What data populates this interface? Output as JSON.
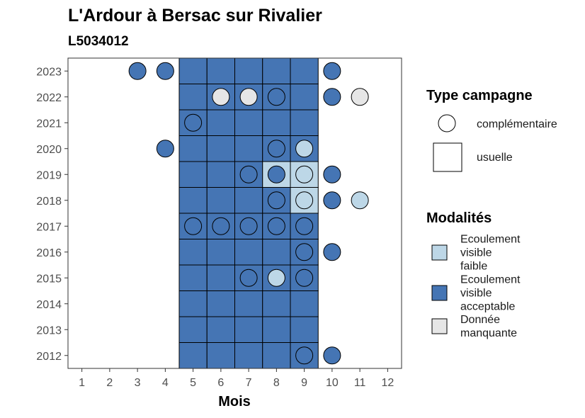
{
  "chart_data": {
    "type": "heatmap",
    "title": "L'Ardour à Bersac sur Rivalier",
    "subtitle": "L5034012",
    "xlabel": "Mois",
    "ylabel": "",
    "x_ticks": [
      1,
      2,
      3,
      4,
      5,
      6,
      7,
      8,
      9,
      10,
      11,
      12
    ],
    "y_ticks": [
      2012,
      2013,
      2014,
      2015,
      2016,
      2017,
      2018,
      2019,
      2020,
      2021,
      2022,
      2023
    ],
    "xlim": [
      0.5,
      12.5
    ],
    "ylim": [
      2011.5,
      2023.5
    ],
    "grid": false,
    "legend_position": "right",
    "colors": {
      "Ecoulement visible faible": "#BDD7E7",
      "Ecoulement visible acceptable": "#4575B4",
      "Donnée manquante": "#E6E6E6"
    },
    "legend": {
      "type_title": "Type campagne",
      "type_items": [
        "complémentaire",
        "usuelle"
      ],
      "modalite_title": "Modalités",
      "modalite_items": [
        {
          "label_lines": [
            "Ecoulement",
            "visible",
            "faible"
          ],
          "modalite": "Ecoulement visible faible"
        },
        {
          "label_lines": [
            "Ecoulement",
            "visible",
            "acceptable"
          ],
          "modalite": "Ecoulement visible acceptable"
        },
        {
          "label_lines": [
            "Donnée",
            "manquante"
          ],
          "modalite": "Donnée manquante"
        }
      ]
    },
    "usuelle": [
      {
        "year": 2023,
        "months": [
          5,
          6,
          7,
          8,
          9
        ],
        "modalites": [
          "A",
          "A",
          "A",
          "A",
          "A"
        ]
      },
      {
        "year": 2022,
        "months": [
          5,
          6,
          7,
          8,
          9
        ],
        "modalites": [
          "A",
          "A",
          "A",
          "A",
          "A"
        ]
      },
      {
        "year": 2021,
        "months": [
          5,
          6,
          7,
          8,
          9
        ],
        "modalites": [
          "A",
          "A",
          "A",
          "A",
          "A"
        ]
      },
      {
        "year": 2020,
        "months": [
          5,
          6,
          7,
          8,
          9
        ],
        "modalites": [
          "A",
          "A",
          "A",
          "A",
          "A"
        ]
      },
      {
        "year": 2019,
        "months": [
          5,
          6,
          7,
          8,
          9
        ],
        "modalites": [
          "A",
          "A",
          "A",
          "F",
          "F"
        ]
      },
      {
        "year": 2018,
        "months": [
          5,
          6,
          7,
          8,
          9
        ],
        "modalites": [
          "A",
          "A",
          "A",
          "A",
          "F"
        ]
      },
      {
        "year": 2017,
        "months": [
          5,
          6,
          7,
          8,
          9
        ],
        "modalites": [
          "A",
          "A",
          "A",
          "A",
          "A"
        ]
      },
      {
        "year": 2016,
        "months": [
          5,
          6,
          7,
          8,
          9
        ],
        "modalites": [
          "A",
          "A",
          "A",
          "A",
          "A"
        ]
      },
      {
        "year": 2015,
        "months": [
          5,
          6,
          7,
          8,
          9
        ],
        "modalites": [
          "A",
          "A",
          "A",
          "A",
          "A"
        ]
      },
      {
        "year": 2014,
        "months": [
          5,
          6,
          7,
          8,
          9
        ],
        "modalites": [
          "A",
          "A",
          "A",
          "A",
          "A"
        ]
      },
      {
        "year": 2013,
        "months": [
          5,
          6,
          7,
          8,
          9
        ],
        "modalites": [
          "A",
          "A",
          "A",
          "A",
          "A"
        ]
      },
      {
        "year": 2012,
        "months": [
          5,
          6,
          7,
          8,
          9
        ],
        "modalites": [
          "A",
          "A",
          "A",
          "A",
          "A"
        ]
      }
    ],
    "complementaire": [
      {
        "year": 2023,
        "month": 3,
        "m": "A"
      },
      {
        "year": 2023,
        "month": 4,
        "m": "A"
      },
      {
        "year": 2023,
        "month": 10,
        "m": "A"
      },
      {
        "year": 2022,
        "month": 6,
        "m": "M"
      },
      {
        "year": 2022,
        "month": 7,
        "m": "M"
      },
      {
        "year": 2022,
        "month": 8,
        "m": "A"
      },
      {
        "year": 2022,
        "month": 10,
        "m": "A"
      },
      {
        "year": 2022,
        "month": 11,
        "m": "M"
      },
      {
        "year": 2021,
        "month": 5,
        "m": "A"
      },
      {
        "year": 2020,
        "month": 4,
        "m": "A"
      },
      {
        "year": 2020,
        "month": 8,
        "m": "A"
      },
      {
        "year": 2020,
        "month": 9,
        "m": "F"
      },
      {
        "year": 2019,
        "month": 7,
        "m": "A"
      },
      {
        "year": 2019,
        "month": 8,
        "m": "A"
      },
      {
        "year": 2019,
        "month": 9,
        "m": "F"
      },
      {
        "year": 2019,
        "month": 10,
        "m": "A"
      },
      {
        "year": 2018,
        "month": 8,
        "m": "A"
      },
      {
        "year": 2018,
        "month": 9,
        "m": "F"
      },
      {
        "year": 2018,
        "month": 10,
        "m": "A"
      },
      {
        "year": 2018,
        "month": 11,
        "m": "F"
      },
      {
        "year": 2017,
        "month": 5,
        "m": "A"
      },
      {
        "year": 2017,
        "month": 6,
        "m": "A"
      },
      {
        "year": 2017,
        "month": 7,
        "m": "A"
      },
      {
        "year": 2017,
        "month": 8,
        "m": "A"
      },
      {
        "year": 2017,
        "month": 9,
        "m": "A"
      },
      {
        "year": 2016,
        "month": 9,
        "m": "A"
      },
      {
        "year": 2016,
        "month": 10,
        "m": "A"
      },
      {
        "year": 2015,
        "month": 7,
        "m": "A"
      },
      {
        "year": 2015,
        "month": 8,
        "m": "F"
      },
      {
        "year": 2015,
        "month": 9,
        "m": "A"
      },
      {
        "year": 2012,
        "month": 9,
        "m": "A"
      },
      {
        "year": 2012,
        "month": 10,
        "m": "A"
      }
    ],
    "modalite_codes": {
      "F": "Ecoulement visible faible",
      "A": "Ecoulement visible acceptable",
      "M": "Donnée manquante"
    }
  }
}
